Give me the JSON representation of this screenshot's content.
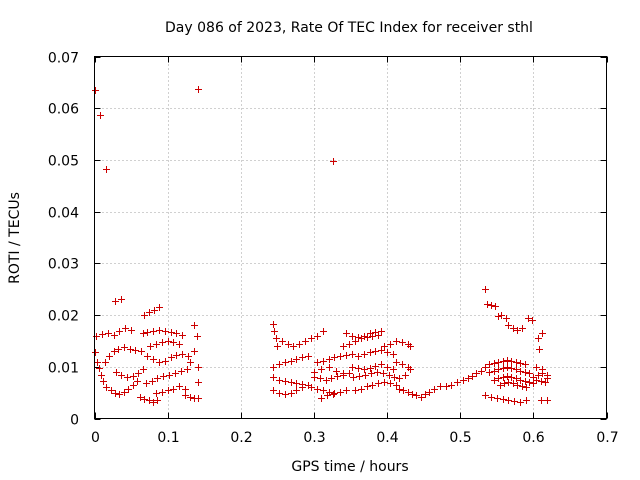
{
  "chart_data": {
    "type": "scatter",
    "title": "Day 086 of 2023, Rate Of TEC Index for receiver sthl",
    "xlabel": "GPS time / hours",
    "ylabel": "ROTI / TECUs",
    "xlim": [
      0,
      0.7
    ],
    "ylim": [
      0,
      0.07
    ],
    "xticks": [
      0,
      0.1,
      0.2,
      0.3,
      0.4,
      0.5,
      0.6,
      0.7
    ],
    "yticks": [
      0,
      0.01,
      0.02,
      0.03,
      0.04,
      0.05,
      0.06,
      0.07
    ],
    "xtick_labels": [
      "0",
      "0.1",
      "0.2",
      "0.3",
      "0.4",
      "0.5",
      "0.6",
      "0.7"
    ],
    "ytick_labels": [
      "0",
      "0.01",
      "0.02",
      "0.03",
      "0.04",
      "0.05",
      "0.06",
      "0.07"
    ],
    "grid": true,
    "marker": "plus",
    "color": "#cc0000",
    "series": [
      {
        "name": "ROTI",
        "points": [
          [
            0.0,
            0.0636
          ],
          [
            0.008,
            0.0587
          ],
          [
            0.016,
            0.0483
          ],
          [
            0.141,
            0.0638
          ],
          [
            0.326,
            0.0497
          ],
          [
            0.028,
            0.0228
          ],
          [
            0.036,
            0.0232
          ],
          [
            0.068,
            0.02
          ],
          [
            0.075,
            0.0205
          ],
          [
            0.082,
            0.021
          ],
          [
            0.088,
            0.0216
          ],
          [
            0.0,
            0.0128
          ],
          [
            0.003,
            0.011
          ],
          [
            0.006,
            0.0098
          ],
          [
            0.009,
            0.0085
          ],
          [
            0.012,
            0.0072
          ],
          [
            0.002,
            0.016
          ],
          [
            0.01,
            0.0163
          ],
          [
            0.018,
            0.0165
          ],
          [
            0.026,
            0.0162
          ],
          [
            0.034,
            0.017
          ],
          [
            0.042,
            0.0175
          ],
          [
            0.05,
            0.0172
          ],
          [
            0.014,
            0.011
          ],
          [
            0.02,
            0.012
          ],
          [
            0.026,
            0.013
          ],
          [
            0.032,
            0.0135
          ],
          [
            0.04,
            0.0138
          ],
          [
            0.048,
            0.0135
          ],
          [
            0.056,
            0.0132
          ],
          [
            0.064,
            0.013
          ],
          [
            0.016,
            0.006
          ],
          [
            0.022,
            0.0055
          ],
          [
            0.028,
            0.005
          ],
          [
            0.034,
            0.0048
          ],
          [
            0.04,
            0.0052
          ],
          [
            0.046,
            0.0058
          ],
          [
            0.052,
            0.0065
          ],
          [
            0.058,
            0.0072
          ],
          [
            0.03,
            0.009
          ],
          [
            0.036,
            0.0085
          ],
          [
            0.044,
            0.008
          ],
          [
            0.052,
            0.0082
          ],
          [
            0.06,
            0.0088
          ],
          [
            0.066,
            0.0095
          ],
          [
            0.062,
            0.0042
          ],
          [
            0.068,
            0.0038
          ],
          [
            0.074,
            0.0035
          ],
          [
            0.08,
            0.0032
          ],
          [
            0.086,
            0.0036
          ],
          [
            0.066,
            0.0165
          ],
          [
            0.072,
            0.0168
          ],
          [
            0.08,
            0.017
          ],
          [
            0.088,
            0.0172
          ],
          [
            0.096,
            0.017
          ],
          [
            0.104,
            0.0168
          ],
          [
            0.112,
            0.0165
          ],
          [
            0.12,
            0.0162
          ],
          [
            0.072,
            0.012
          ],
          [
            0.08,
            0.0115
          ],
          [
            0.088,
            0.011
          ],
          [
            0.096,
            0.0112
          ],
          [
            0.104,
            0.0118
          ],
          [
            0.112,
            0.0122
          ],
          [
            0.12,
            0.0125
          ],
          [
            0.128,
            0.012
          ],
          [
            0.07,
            0.0068
          ],
          [
            0.078,
            0.0072
          ],
          [
            0.086,
            0.0078
          ],
          [
            0.094,
            0.0082
          ],
          [
            0.102,
            0.0085
          ],
          [
            0.11,
            0.0088
          ],
          [
            0.118,
            0.0092
          ],
          [
            0.126,
            0.0095
          ],
          [
            0.084,
            0.005
          ],
          [
            0.092,
            0.0052
          ],
          [
            0.1,
            0.0055
          ],
          [
            0.108,
            0.0058
          ],
          [
            0.116,
            0.0062
          ],
          [
            0.124,
            0.0058
          ],
          [
            0.076,
            0.014
          ],
          [
            0.084,
            0.0145
          ],
          [
            0.092,
            0.0148
          ],
          [
            0.1,
            0.015
          ],
          [
            0.108,
            0.0148
          ],
          [
            0.116,
            0.0145
          ],
          [
            0.124,
            0.0045
          ],
          [
            0.13,
            0.0042
          ],
          [
            0.136,
            0.004
          ],
          [
            0.142,
            0.004
          ],
          [
            0.13,
            0.011
          ],
          [
            0.136,
            0.013
          ],
          [
            0.14,
            0.016
          ],
          [
            0.136,
            0.018
          ],
          [
            0.142,
            0.01
          ],
          [
            0.142,
            0.007
          ],
          [
            0.244,
            0.0183
          ],
          [
            0.246,
            0.017
          ],
          [
            0.248,
            0.0155
          ],
          [
            0.25,
            0.014
          ],
          [
            0.244,
            0.01
          ],
          [
            0.252,
            0.0105
          ],
          [
            0.26,
            0.011
          ],
          [
            0.268,
            0.0112
          ],
          [
            0.276,
            0.0115
          ],
          [
            0.284,
            0.0118
          ],
          [
            0.292,
            0.012
          ],
          [
            0.244,
            0.008
          ],
          [
            0.252,
            0.0075
          ],
          [
            0.26,
            0.0072
          ],
          [
            0.268,
            0.007
          ],
          [
            0.276,
            0.0068
          ],
          [
            0.284,
            0.0066
          ],
          [
            0.292,
            0.0065
          ],
          [
            0.244,
            0.0055
          ],
          [
            0.252,
            0.005
          ],
          [
            0.26,
            0.0048
          ],
          [
            0.268,
            0.005
          ],
          [
            0.276,
            0.0055
          ],
          [
            0.284,
            0.006
          ],
          [
            0.256,
            0.015
          ],
          [
            0.264,
            0.0145
          ],
          [
            0.272,
            0.014
          ],
          [
            0.28,
            0.0145
          ],
          [
            0.288,
            0.015
          ],
          [
            0.296,
            0.0155
          ],
          [
            0.304,
            0.016
          ],
          [
            0.312,
            0.017
          ],
          [
            0.3,
            0.008
          ],
          [
            0.308,
            0.0078
          ],
          [
            0.316,
            0.0075
          ],
          [
            0.324,
            0.0078
          ],
          [
            0.332,
            0.0082
          ],
          [
            0.34,
            0.0085
          ],
          [
            0.348,
            0.0088
          ],
          [
            0.296,
            0.006
          ],
          [
            0.304,
            0.0058
          ],
          [
            0.312,
            0.0055
          ],
          [
            0.32,
            0.0052
          ],
          [
            0.328,
            0.005
          ],
          [
            0.336,
            0.0052
          ],
          [
            0.344,
            0.0055
          ],
          [
            0.304,
            0.011
          ],
          [
            0.312,
            0.0112
          ],
          [
            0.32,
            0.0115
          ],
          [
            0.328,
            0.0118
          ],
          [
            0.336,
            0.012
          ],
          [
            0.344,
            0.0122
          ],
          [
            0.352,
            0.0125
          ],
          [
            0.3,
            0.009
          ],
          [
            0.31,
            0.0095
          ],
          [
            0.32,
            0.01
          ],
          [
            0.33,
            0.0092
          ],
          [
            0.34,
            0.0088
          ],
          [
            0.31,
            0.004
          ],
          [
            0.318,
            0.0045
          ],
          [
            0.326,
            0.0048
          ],
          [
            0.34,
            0.014
          ],
          [
            0.348,
            0.0145
          ],
          [
            0.356,
            0.015
          ],
          [
            0.364,
            0.0155
          ],
          [
            0.372,
            0.0158
          ],
          [
            0.38,
            0.016
          ],
          [
            0.388,
            0.0162
          ],
          [
            0.344,
            0.0165
          ],
          [
            0.352,
            0.016
          ],
          [
            0.36,
            0.0158
          ],
          [
            0.368,
            0.016
          ],
          [
            0.376,
            0.0165
          ],
          [
            0.384,
            0.0168
          ],
          [
            0.392,
            0.017
          ],
          [
            0.352,
            0.01
          ],
          [
            0.36,
            0.0098
          ],
          [
            0.368,
            0.0095
          ],
          [
            0.376,
            0.0098
          ],
          [
            0.384,
            0.0102
          ],
          [
            0.392,
            0.0105
          ],
          [
            0.4,
            0.01
          ],
          [
            0.408,
            0.0095
          ],
          [
            0.354,
            0.008
          ],
          [
            0.362,
            0.0082
          ],
          [
            0.37,
            0.0085
          ],
          [
            0.378,
            0.0088
          ],
          [
            0.386,
            0.009
          ],
          [
            0.394,
            0.0088
          ],
          [
            0.402,
            0.0085
          ],
          [
            0.41,
            0.008
          ],
          [
            0.356,
            0.0055
          ],
          [
            0.364,
            0.0058
          ],
          [
            0.372,
            0.0062
          ],
          [
            0.38,
            0.0065
          ],
          [
            0.388,
            0.0068
          ],
          [
            0.396,
            0.007
          ],
          [
            0.404,
            0.0068
          ],
          [
            0.412,
            0.0065
          ],
          [
            0.36,
            0.012
          ],
          [
            0.368,
            0.0125
          ],
          [
            0.376,
            0.0128
          ],
          [
            0.384,
            0.013
          ],
          [
            0.392,
            0.0132
          ],
          [
            0.4,
            0.0128
          ],
          [
            0.408,
            0.0125
          ],
          [
            0.396,
            0.014
          ],
          [
            0.404,
            0.0145
          ],
          [
            0.412,
            0.015
          ],
          [
            0.42,
            0.0148
          ],
          [
            0.428,
            0.0145
          ],
          [
            0.432,
            0.014
          ],
          [
            0.412,
            0.011
          ],
          [
            0.42,
            0.0105
          ],
          [
            0.428,
            0.01
          ],
          [
            0.432,
            0.0095
          ],
          [
            0.424,
            0.0085
          ],
          [
            0.416,
            0.0078
          ],
          [
            0.416,
            0.0058
          ],
          [
            0.422,
            0.0055
          ],
          [
            0.428,
            0.0052
          ],
          [
            0.434,
            0.0048
          ],
          [
            0.44,
            0.0045
          ],
          [
            0.446,
            0.0042
          ],
          [
            0.452,
            0.0048
          ],
          [
            0.458,
            0.0052
          ],
          [
            0.464,
            0.0058
          ],
          [
            0.472,
            0.0062
          ],
          [
            0.48,
            0.0062
          ],
          [
            0.488,
            0.0065
          ],
          [
            0.496,
            0.007
          ],
          [
            0.504,
            0.0075
          ],
          [
            0.51,
            0.0078
          ],
          [
            0.516,
            0.0082
          ],
          [
            0.522,
            0.0088
          ],
          [
            0.528,
            0.0092
          ],
          [
            0.534,
            0.025
          ],
          [
            0.536,
            0.0222
          ],
          [
            0.542,
            0.022
          ],
          [
            0.548,
            0.0218
          ],
          [
            0.552,
            0.0198
          ],
          [
            0.556,
            0.02
          ],
          [
            0.562,
            0.0195
          ],
          [
            0.566,
            0.018
          ],
          [
            0.572,
            0.0175
          ],
          [
            0.578,
            0.0172
          ],
          [
            0.584,
            0.0175
          ],
          [
            0.592,
            0.0195
          ],
          [
            0.598,
            0.019
          ],
          [
            0.606,
            0.0155
          ],
          [
            0.612,
            0.0165
          ],
          [
            0.608,
            0.0135
          ],
          [
            0.534,
            0.01
          ],
          [
            0.54,
            0.0105
          ],
          [
            0.546,
            0.0108
          ],
          [
            0.552,
            0.011
          ],
          [
            0.558,
            0.0112
          ],
          [
            0.564,
            0.0114
          ],
          [
            0.57,
            0.0112
          ],
          [
            0.576,
            0.011
          ],
          [
            0.582,
            0.0108
          ],
          [
            0.588,
            0.0105
          ],
          [
            0.54,
            0.009
          ],
          [
            0.546,
            0.0092
          ],
          [
            0.552,
            0.0095
          ],
          [
            0.558,
            0.0098
          ],
          [
            0.564,
            0.01
          ],
          [
            0.57,
            0.0098
          ],
          [
            0.576,
            0.0095
          ],
          [
            0.582,
            0.0092
          ],
          [
            0.588,
            0.009
          ],
          [
            0.594,
            0.0088
          ],
          [
            0.546,
            0.0075
          ],
          [
            0.552,
            0.0078
          ],
          [
            0.558,
            0.008
          ],
          [
            0.564,
            0.0082
          ],
          [
            0.57,
            0.008
          ],
          [
            0.576,
            0.0078
          ],
          [
            0.582,
            0.0075
          ],
          [
            0.588,
            0.0072
          ],
          [
            0.594,
            0.007
          ],
          [
            0.6,
            0.0068
          ],
          [
            0.554,
            0.0065
          ],
          [
            0.56,
            0.0068
          ],
          [
            0.566,
            0.007
          ],
          [
            0.572,
            0.0068
          ],
          [
            0.578,
            0.0065
          ],
          [
            0.584,
            0.0062
          ],
          [
            0.59,
            0.006
          ],
          [
            0.534,
            0.0045
          ],
          [
            0.542,
            0.0042
          ],
          [
            0.55,
            0.004
          ],
          [
            0.558,
            0.0038
          ],
          [
            0.566,
            0.0035
          ],
          [
            0.574,
            0.0033
          ],
          [
            0.582,
            0.0032
          ],
          [
            0.59,
            0.0035
          ],
          [
            0.6,
            0.008
          ],
          [
            0.606,
            0.0085
          ],
          [
            0.612,
            0.0088
          ],
          [
            0.618,
            0.0085
          ],
          [
            0.604,
            0.0075
          ],
          [
            0.61,
            0.0072
          ],
          [
            0.616,
            0.007
          ],
          [
            0.618,
            0.0078
          ],
          [
            0.61,
            0.0035
          ],
          [
            0.618,
            0.0035
          ],
          [
            0.604,
            0.01
          ],
          [
            0.612,
            0.0095
          ]
        ]
      }
    ]
  }
}
